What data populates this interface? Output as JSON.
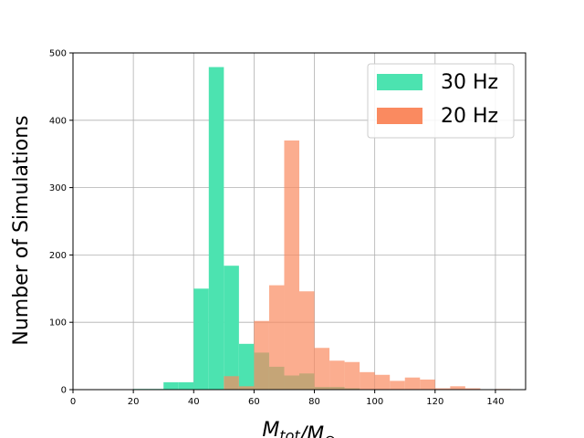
{
  "chart_data": {
    "type": "bar",
    "subtype": "overlapping-histogram",
    "title": "",
    "xlabel": "M_tot/M_⊙",
    "ylabel": "Number of Simulations",
    "xlim": [
      0,
      150
    ],
    "ylim": [
      0,
      500
    ],
    "xticks": [
      0,
      20,
      40,
      60,
      80,
      100,
      120,
      140
    ],
    "yticks": [
      0,
      100,
      200,
      300,
      400,
      500
    ],
    "grid": true,
    "legend_position": "top-right",
    "bin_width": 5,
    "series": [
      {
        "name": "30 Hz",
        "color": "#4ce3b0",
        "bins": [
          {
            "x0": 20,
            "count": 1
          },
          {
            "x0": 25,
            "count": 1
          },
          {
            "x0": 30,
            "count": 11
          },
          {
            "x0": 35,
            "count": 11
          },
          {
            "x0": 40,
            "count": 150
          },
          {
            "x0": 45,
            "count": 479
          },
          {
            "x0": 50,
            "count": 184
          },
          {
            "x0": 55,
            "count": 68
          },
          {
            "x0": 60,
            "count": 55
          },
          {
            "x0": 65,
            "count": 34
          },
          {
            "x0": 70,
            "count": 21
          },
          {
            "x0": 75,
            "count": 24
          },
          {
            "x0": 80,
            "count": 4
          },
          {
            "x0": 85,
            "count": 4
          },
          {
            "x0": 90,
            "count": 2
          }
        ]
      },
      {
        "name": "20 Hz",
        "color": "#fa8a60",
        "bins": [
          {
            "x0": 50,
            "count": 20
          },
          {
            "x0": 55,
            "count": 5
          },
          {
            "x0": 60,
            "count": 102
          },
          {
            "x0": 65,
            "count": 155
          },
          {
            "x0": 70,
            "count": 370
          },
          {
            "x0": 75,
            "count": 146
          },
          {
            "x0": 80,
            "count": 62
          },
          {
            "x0": 85,
            "count": 43
          },
          {
            "x0": 90,
            "count": 41
          },
          {
            "x0": 95,
            "count": 26
          },
          {
            "x0": 100,
            "count": 22
          },
          {
            "x0": 105,
            "count": 13
          },
          {
            "x0": 110,
            "count": 18
          },
          {
            "x0": 115,
            "count": 15
          },
          {
            "x0": 120,
            "count": 2
          },
          {
            "x0": 125,
            "count": 5
          },
          {
            "x0": 130,
            "count": 2
          },
          {
            "x0": 140,
            "count": 1
          }
        ]
      }
    ]
  }
}
